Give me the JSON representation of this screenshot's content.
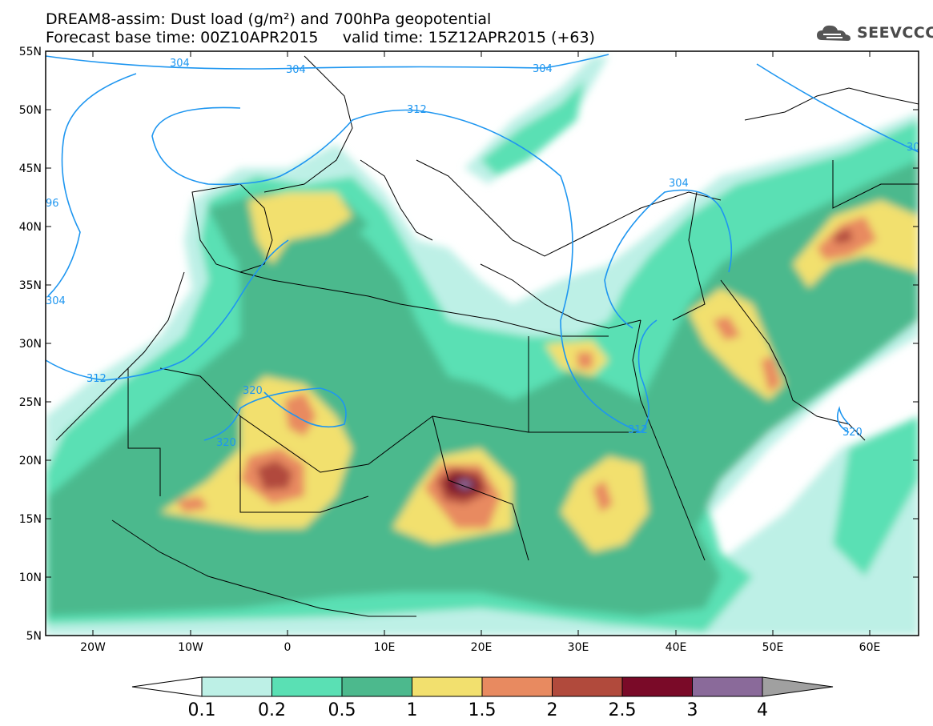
{
  "title": {
    "line1": "DREAM8-assim: Dust load (g/m²) and 700hPa geopotential",
    "line2": "Forecast base time: 00Z10APR2015     valid time: 15Z12APR2015 (+63)"
  },
  "logo": {
    "icon": "cloud-logo-icon",
    "text": "SEEVCCC"
  },
  "axes": {
    "y_ticks": [
      "55N",
      "50N",
      "45N",
      "40N",
      "35N",
      "30N",
      "25N",
      "20N",
      "15N",
      "10N",
      "5N"
    ],
    "x_ticks": [
      "20W",
      "10W",
      "0",
      "10E",
      "20E",
      "30E",
      "40E",
      "50E",
      "60E"
    ]
  },
  "contour_labels": [
    "304",
    "304",
    "312",
    "30",
    "304",
    "96",
    "304",
    "312",
    "320",
    "320",
    "304",
    "312",
    "320"
  ],
  "colorbar": {
    "labels": [
      "0.1",
      "0.2",
      "0.5",
      "1",
      "1.5",
      "2",
      "2.5",
      "3",
      "4"
    ],
    "colors": [
      "#ffffff",
      "#bdf0e6",
      "#5ae0b4",
      "#4cb98d",
      "#f2e06e",
      "#e88a60",
      "#b14a3c",
      "#7a0a28",
      "#8a6a9a",
      "#a0a0a0"
    ]
  },
  "colors": {
    "contour": "#1e96f0",
    "land_dust_low": "#5ae0b4",
    "land_dust_mid": "#4cb98d"
  }
}
